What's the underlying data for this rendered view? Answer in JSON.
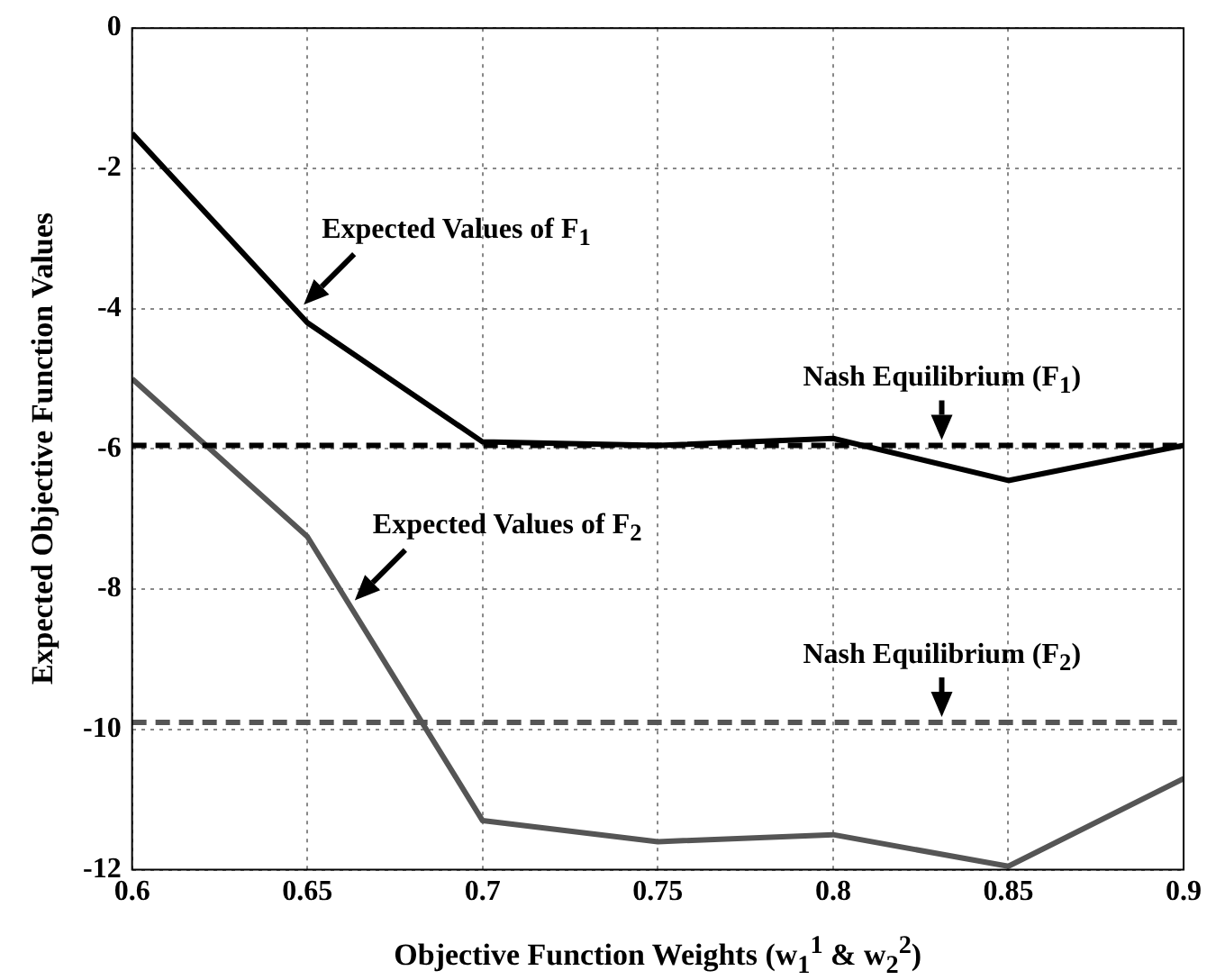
{
  "chart_data": {
    "type": "line",
    "xlabel": "Objective Function Weights (w$_{1}$$^{1}$ & w$_{2}$$^{2}$)",
    "ylabel": "Expected Objective Function Values",
    "x": [
      0.6,
      0.65,
      0.7,
      0.75,
      0.8,
      0.85,
      0.9
    ],
    "series": [
      {
        "name": "Expected Values of F$_{1}$",
        "color": "#000000",
        "values": [
          -1.5,
          -4.2,
          -5.9,
          -5.95,
          -5.85,
          -6.45,
          -5.95
        ]
      },
      {
        "name": "Expected Values of F$_{2}$",
        "color": "#555555",
        "values": [
          -5.0,
          -7.25,
          -11.3,
          -11.6,
          -11.5,
          -11.95,
          -10.7
        ]
      }
    ],
    "ref_lines": [
      {
        "axis": "y",
        "value": -5.95,
        "label": "Nash Equilibrium (F$_{1}$)",
        "color": "#000000",
        "line_style": "dashed"
      },
      {
        "axis": "y",
        "value": -9.9,
        "label": "Nash Equilibrium (F$_{2}$)",
        "color": "#555555",
        "line_style": "dashed"
      }
    ],
    "xlim": [
      0.6,
      0.9
    ],
    "xticks": [
      0.6,
      0.65,
      0.7,
      0.75,
      0.8,
      0.85,
      0.9
    ],
    "ylim": [
      -12,
      0
    ],
    "yticks": [
      -12,
      -10,
      -8,
      -6,
      -4,
      -2,
      0
    ],
    "grid": true,
    "legend": false,
    "marker": "none",
    "line_style": "solid"
  }
}
